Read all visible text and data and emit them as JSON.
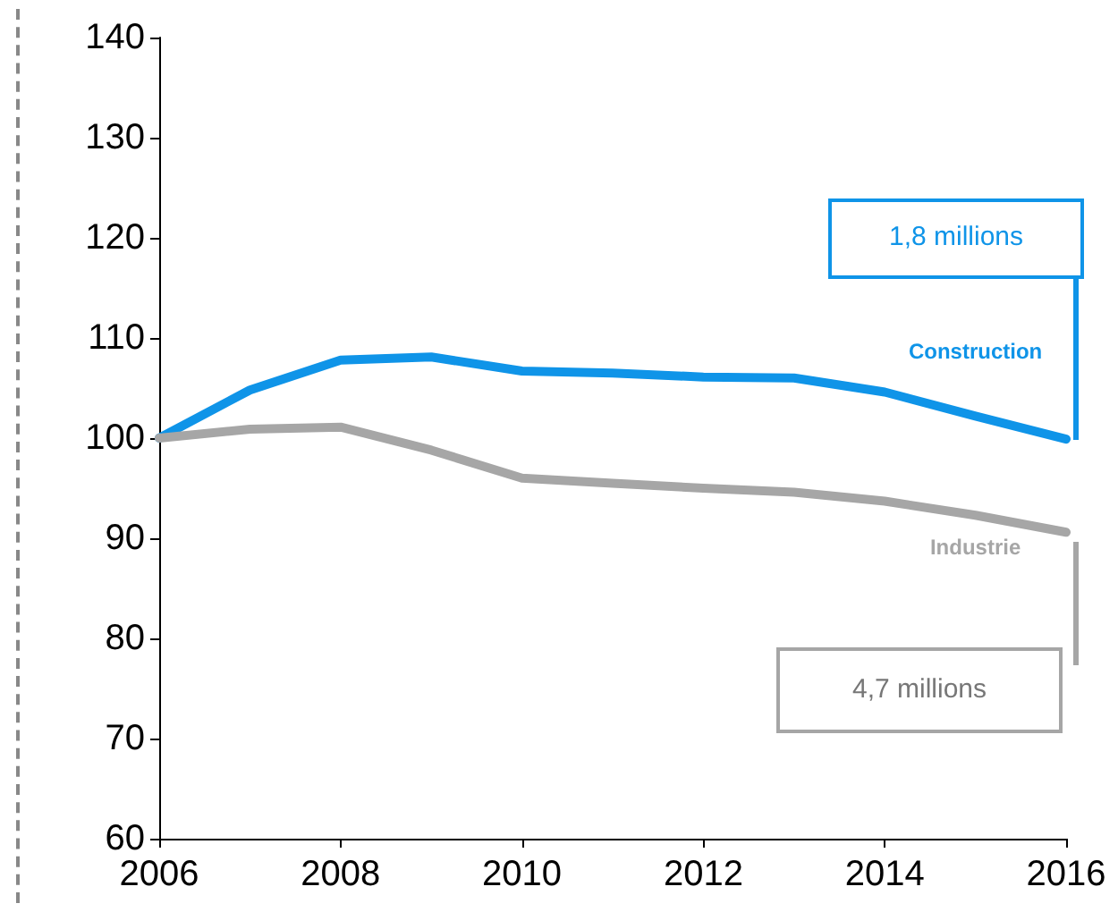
{
  "chart_data": {
    "type": "line",
    "x": [
      2006,
      2007,
      2008,
      2009,
      2010,
      2011,
      2012,
      2013,
      2014,
      2015,
      2016
    ],
    "series": [
      {
        "name": "Construction",
        "color": "#0f94e8",
        "values": [
          100,
          104.8,
          107.8,
          108.1,
          106.7,
          106.5,
          106.1,
          106.0,
          104.6,
          102.2,
          99.9
        ]
      },
      {
        "name": "Industrie",
        "color": "#a6a6a6",
        "values": [
          100,
          100.9,
          101.1,
          98.8,
          96.0,
          95.5,
          95.0,
          94.6,
          93.7,
          92.3,
          90.6
        ]
      }
    ],
    "xlim": [
      2006,
      2016
    ],
    "xticks": [
      2006,
      2008,
      2010,
      2012,
      2014,
      2016
    ],
    "ylim": [
      60,
      140
    ],
    "yticks": [
      60,
      70,
      80,
      90,
      100,
      110,
      120,
      130,
      140
    ],
    "grid": false,
    "legend": false,
    "marker": "none",
    "line_style": "solid",
    "annotations": [
      "1,8 millions",
      "4,7 millions"
    ]
  }
}
